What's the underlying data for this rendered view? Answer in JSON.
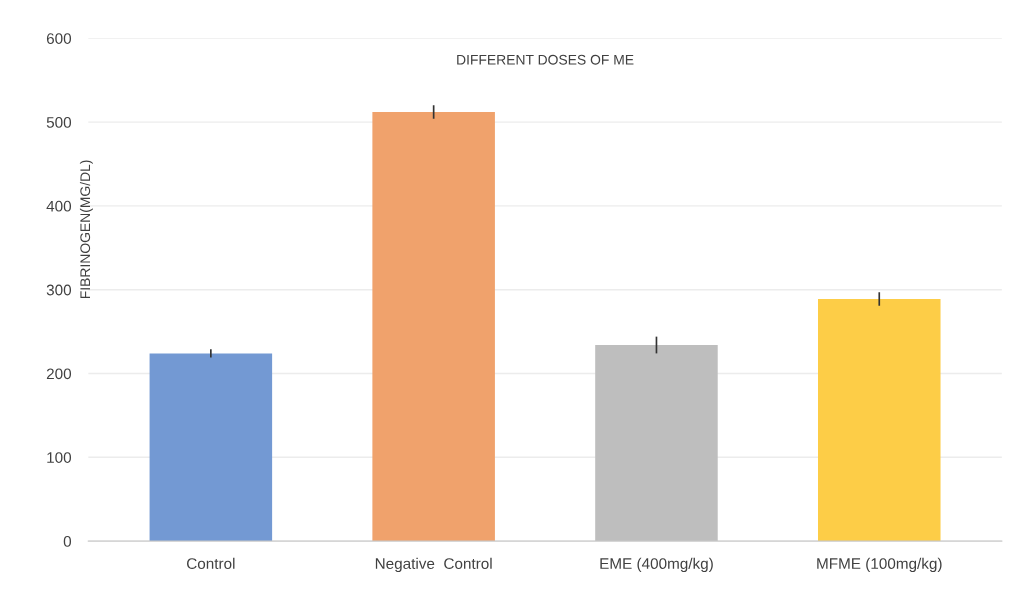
{
  "chart_data": {
    "type": "bar",
    "title": "DIFFERENT DOSES OF ME",
    "ylabel": "FIBRINOGEN(MG/DL)",
    "categories": [
      "Control",
      "Negative  Control",
      "EME (400mg/kg)",
      "MFME (100mg/kg)"
    ],
    "values": [
      224,
      512,
      234,
      289
    ],
    "errors": [
      5,
      8,
      10,
      8
    ],
    "colors": [
      "#7399d3",
      "#f0a26c",
      "#bebebe",
      "#fdcd47"
    ],
    "ylim": [
      0,
      600
    ],
    "yticks": [
      0,
      100,
      200,
      300,
      400,
      500,
      600
    ],
    "grid": "y"
  }
}
